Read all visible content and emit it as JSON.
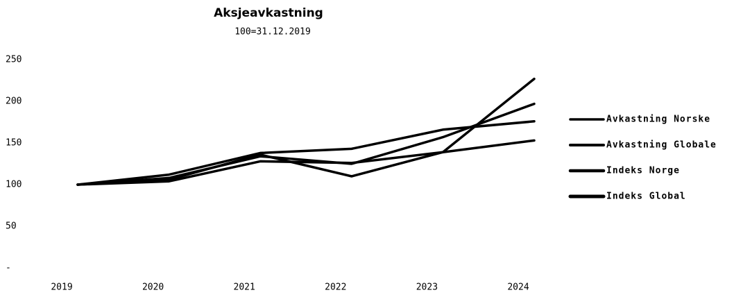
{
  "chart_data": {
    "type": "line",
    "title": "Aksjeavkastning",
    "subtitle": "100=31.12.2019",
    "categories": [
      "2019",
      "2020",
      "2021",
      "2022",
      "2023",
      "2024"
    ],
    "series": [
      {
        "name": "Avkastning Norske",
        "color": "#000000",
        "values": [
          100,
          104,
          128,
          126,
          139,
          153
        ]
      },
      {
        "name": "Avkastning Globale",
        "color": "#000000",
        "values": [
          100,
          108,
          134,
          125,
          157,
          197
        ]
      },
      {
        "name": "Indeks Norge",
        "color": "#000000",
        "values": [
          100,
          106,
          136,
          110,
          139,
          227
        ]
      },
      {
        "name": "Indeks Global",
        "color": "#000000",
        "values": [
          100,
          112,
          138,
          143,
          166,
          176
        ]
      }
    ],
    "ylim": [
      0,
      250
    ],
    "yticks": [
      {
        "value": 0,
        "label": "-"
      },
      50,
      100,
      150,
      200,
      250
    ],
    "legend": "right"
  }
}
